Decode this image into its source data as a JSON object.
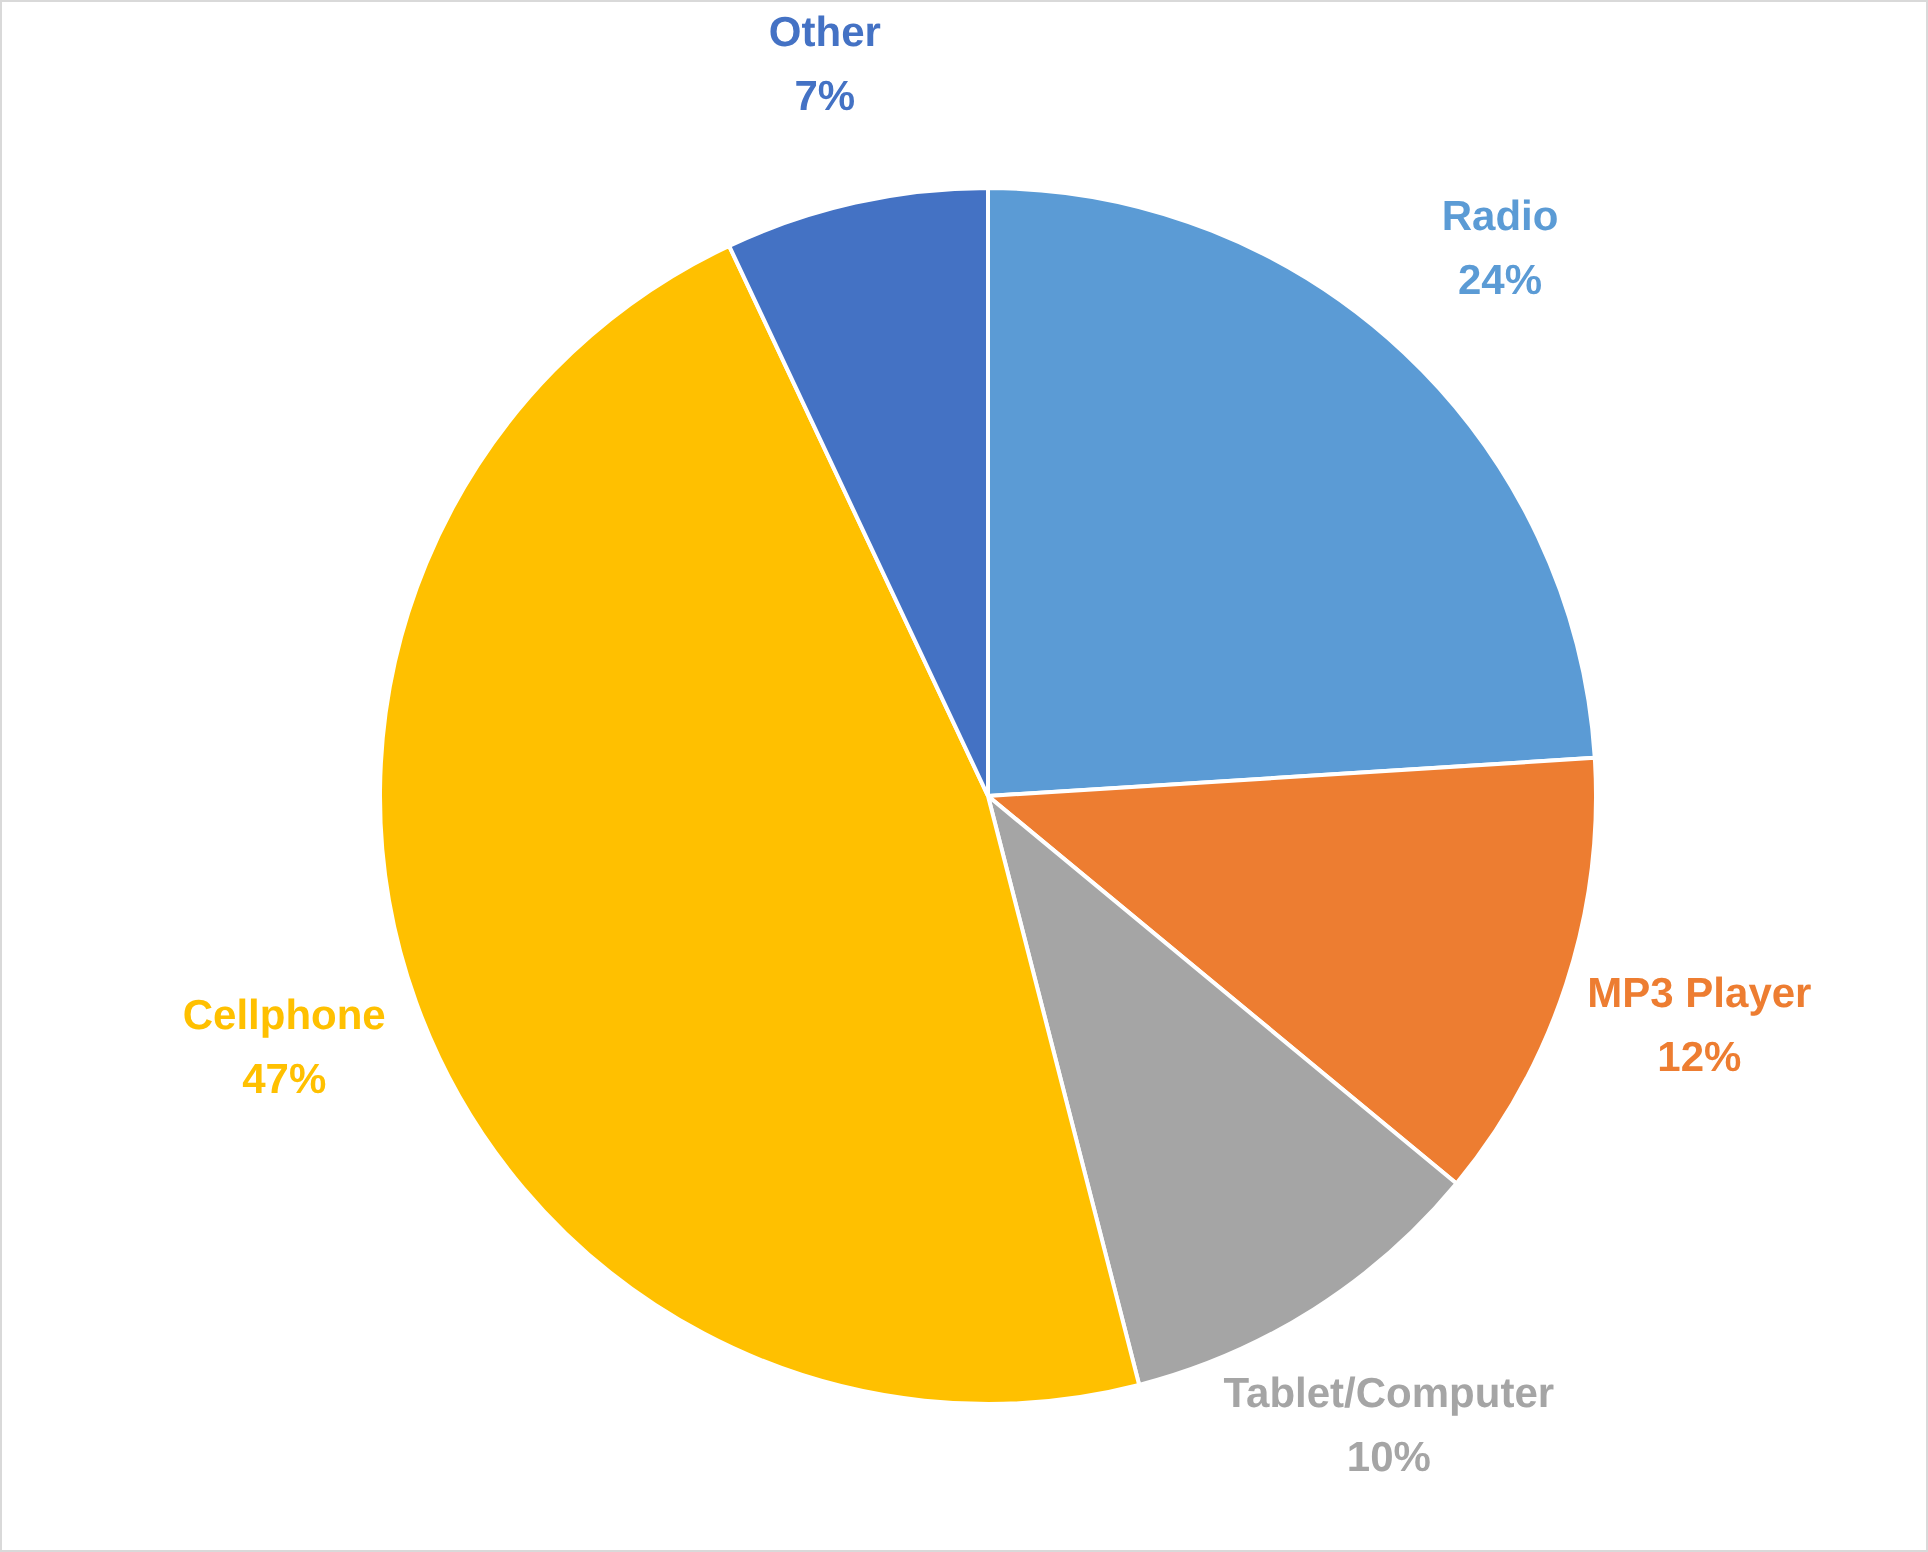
{
  "chart_data": {
    "type": "pie",
    "categories": [
      "Radio",
      "MP3 Player",
      "Tablet/Computer",
      "Cellphone",
      "Other"
    ],
    "values": [
      24,
      12,
      10,
      47,
      7
    ],
    "value_labels": [
      "24%",
      "12%",
      "10%",
      "47%",
      "7%"
    ],
    "colors": [
      "#5b9bd5",
      "#ed7d31",
      "#a5a5a5",
      "#ffc000",
      "#4472c4"
    ],
    "legend": false
  }
}
